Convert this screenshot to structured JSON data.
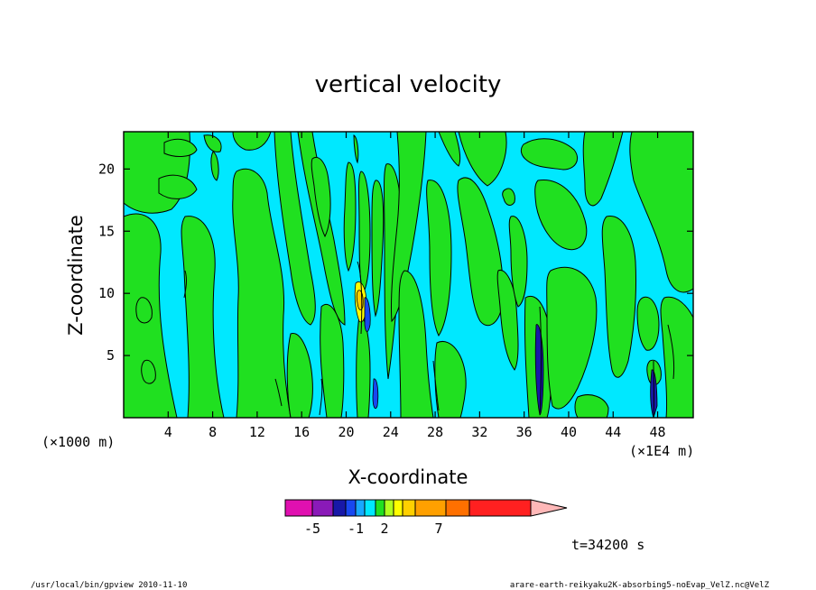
{
  "chart_data": {
    "type": "heatmap",
    "title": "vertical velocity",
    "xlabel": "X-coordinate",
    "ylabel": "Z-coordinate",
    "x_unit": "(×1E4 m)",
    "y_unit": "(×1000 m)",
    "x_range": [
      0,
      51.2
    ],
    "y_range": [
      0,
      23
    ],
    "x_ticks": [
      4,
      8,
      12,
      16,
      20,
      24,
      28,
      32,
      36,
      40,
      44,
      48
    ],
    "y_ticks": [
      5,
      10,
      15,
      20
    ],
    "colorbar": {
      "levels": [
        -7,
        -6,
        -5,
        -4,
        -3,
        -2,
        -1,
        0,
        1,
        2,
        3,
        4,
        5,
        7,
        10
      ],
      "colors": [
        "#e010b0",
        "#8a1ab8",
        "#1818a8",
        "#1848f0",
        "#18a8ff",
        "#00e8ff",
        "#20e020",
        "#b0ff20",
        "#ffff00",
        "#ffd000",
        "#ffa000",
        "#ff7000",
        "#ff2020",
        "#ff8078",
        "#ffb8b8"
      ],
      "tick_values": [
        -5,
        -1,
        2,
        7
      ],
      "tick_labels": [
        "-5",
        "-1",
        "2",
        "7"
      ]
    },
    "grid": false
  },
  "time_label": "t=34200 s",
  "footer": {
    "left": "/usr/local/bin/gpview  2010-11-10",
    "right": "arare-earth-reikyaku2K-absorbing5-noEvap_VelZ.nc@VelZ"
  }
}
